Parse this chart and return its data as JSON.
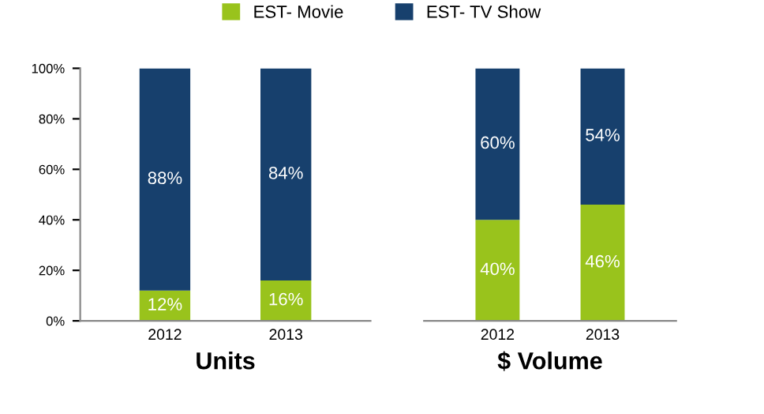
{
  "chart_data": [
    {
      "type": "bar",
      "stacked": true,
      "xlabel": "Units",
      "categories": [
        "2012",
        "2013"
      ],
      "ylim": [
        0,
        100
      ],
      "yticks": [
        {
          "value": 0,
          "label": "0%"
        },
        {
          "value": 20,
          "label": "20%"
        },
        {
          "value": 40,
          "label": "40%"
        },
        {
          "value": 60,
          "label": "60%"
        },
        {
          "value": 80,
          "label": "80%"
        },
        {
          "value": 100,
          "label": "100%"
        }
      ],
      "series": [
        {
          "name": "EST- Movie",
          "color": "#99c31c",
          "values": [
            12,
            16
          ],
          "value_labels": [
            "12%",
            "16%"
          ]
        },
        {
          "name": "EST- TV Show",
          "color": "#17406d",
          "values": [
            88,
            84
          ],
          "value_labels": [
            "88%",
            "84%"
          ]
        }
      ],
      "legend": "top",
      "grid": false
    },
    {
      "type": "bar",
      "stacked": true,
      "xlabel": "$ Volume",
      "categories": [
        "2012",
        "2013"
      ],
      "ylim": [
        0,
        100
      ],
      "tick_labels": "x",
      "series": [
        {
          "color": "#99c31c",
          "values": [
            40,
            46
          ],
          "value_labels": [
            "40%",
            "46%"
          ]
        },
        {
          "color": "#17406d",
          "values": [
            60,
            54
          ],
          "value_labels": [
            "60%",
            "54%"
          ]
        }
      ],
      "grid": false
    }
  ]
}
